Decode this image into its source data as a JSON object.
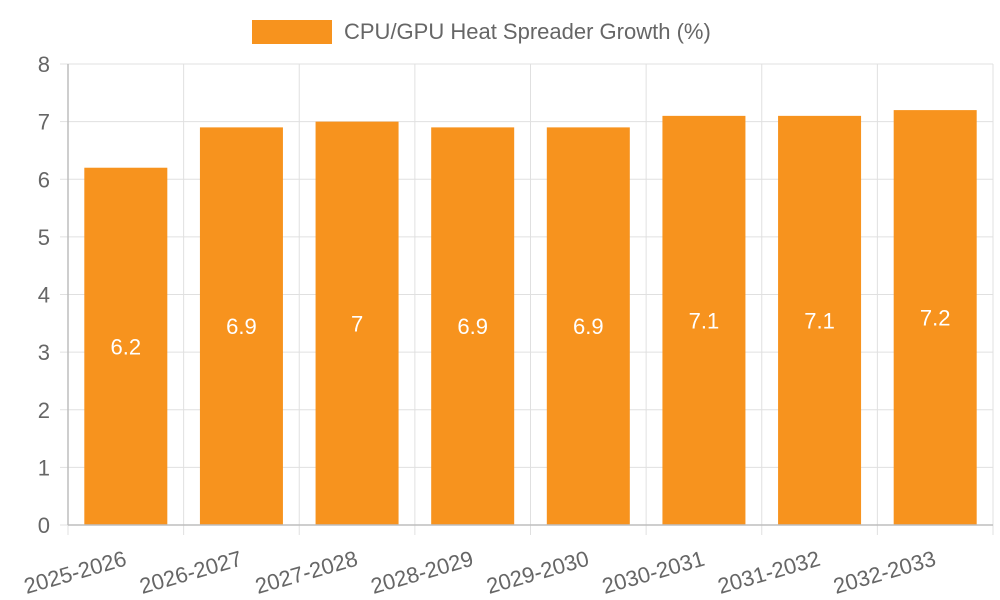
{
  "chart_data": {
    "type": "bar",
    "categories": [
      "2025-2026",
      "2026-2027",
      "2027-2028",
      "2028-2029",
      "2029-2030",
      "2030-2031",
      "2031-2032",
      "2032-2033"
    ],
    "series": [
      {
        "name": "CPU/GPU Heat Spreader Growth (%)",
        "values": [
          6.2,
          6.9,
          7,
          6.9,
          6.9,
          7.1,
          7.1,
          7.2
        ],
        "color": "#f7931e"
      }
    ],
    "data_labels": [
      "6.2",
      "6.9",
      "7",
      "6.9",
      "6.9",
      "7.1",
      "7.1",
      "7.2"
    ],
    "y_ticks": [
      "0",
      "1",
      "2",
      "3",
      "4",
      "5",
      "6",
      "7",
      "8"
    ],
    "ylim": [
      0,
      8
    ],
    "grid": true,
    "legend_position": "top",
    "title": "",
    "xlabel": "",
    "ylabel": ""
  },
  "colors": {
    "bar": "#f7931e",
    "grid": "#e0e0e0",
    "axis": "#bdbdbd",
    "tick_text": "#666666",
    "label_text": "#ffffff"
  }
}
